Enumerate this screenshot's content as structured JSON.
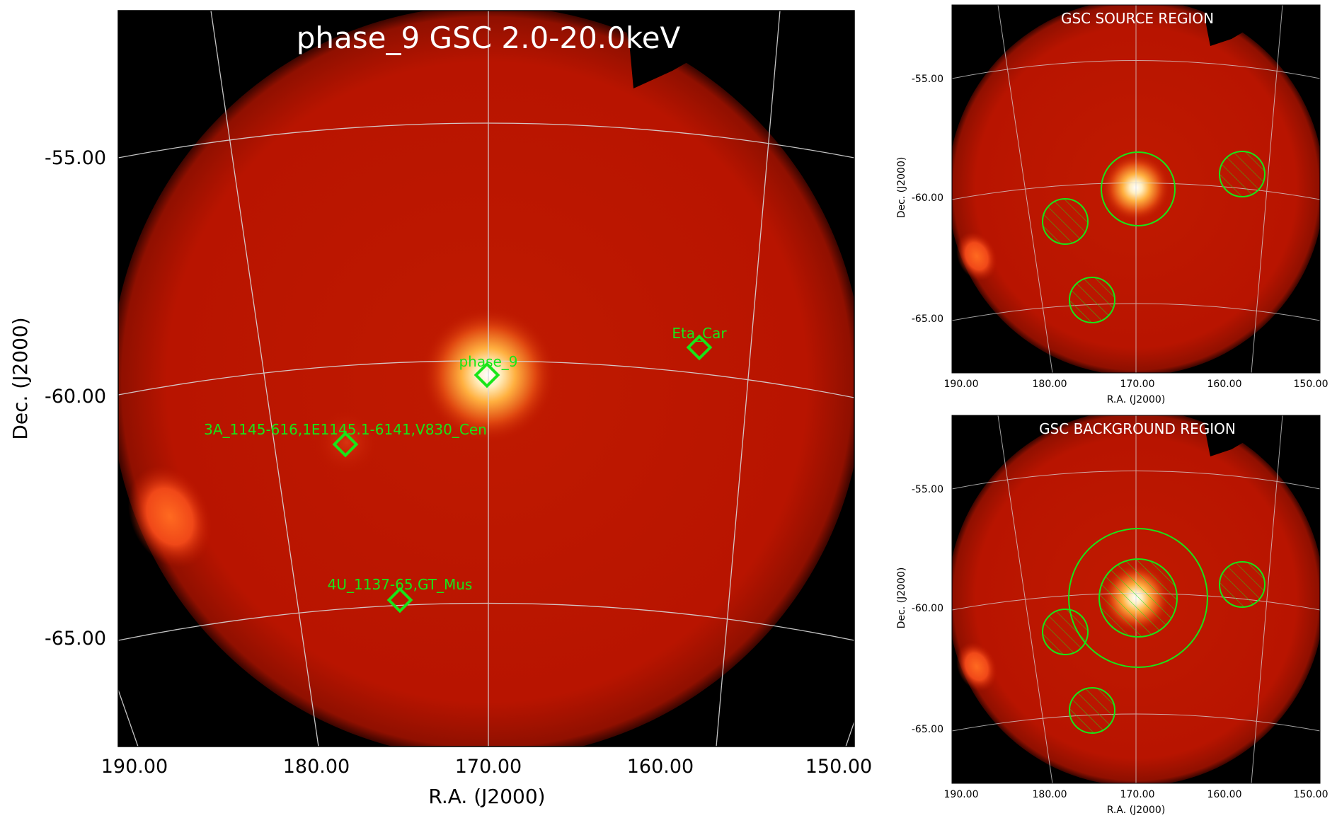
{
  "main_panel": {
    "title": "phase_9 GSC 2.0-20.0keV",
    "xlabel": "R.A. (J2000)",
    "ylabel": "Dec. (J2000)",
    "xticks": [
      "190.00",
      "180.00",
      "170.00",
      "160.00",
      "150.00"
    ],
    "yticks": [
      "-55.00",
      "-60.00",
      "-65.00"
    ],
    "markers": [
      {
        "id": "phase9",
        "label": "phase_9"
      },
      {
        "id": "etacar",
        "label": "Eta_Car"
      },
      {
        "id": "3a1145",
        "label": "3A_1145-616,1E1145.1-6141,V830_Cen"
      },
      {
        "id": "4u1137",
        "label": "4U_1137-65,GT_Mus"
      }
    ]
  },
  "source_panel": {
    "title": "GSC SOURCE REGION",
    "xlabel": "R.A. (J2000)",
    "ylabel": "Dec. (J2000)",
    "xticks": [
      "190.00",
      "180.00",
      "170.00",
      "160.00",
      "150.00"
    ],
    "yticks": [
      "-55.00",
      "-60.00",
      "-65.00"
    ]
  },
  "background_panel": {
    "title": "GSC BACKGROUND REGION",
    "xlabel": "R.A. (J2000)",
    "ylabel": "Dec. (J2000)",
    "xticks": [
      "190.00",
      "180.00",
      "170.00",
      "160.00",
      "150.00"
    ],
    "yticks": [
      "-55.00",
      "-60.00",
      "-65.00"
    ]
  },
  "colors": {
    "sky_red": "#c01400",
    "marker_green": "#18e618",
    "grid": "#d8d8d8",
    "background": "#000000"
  }
}
